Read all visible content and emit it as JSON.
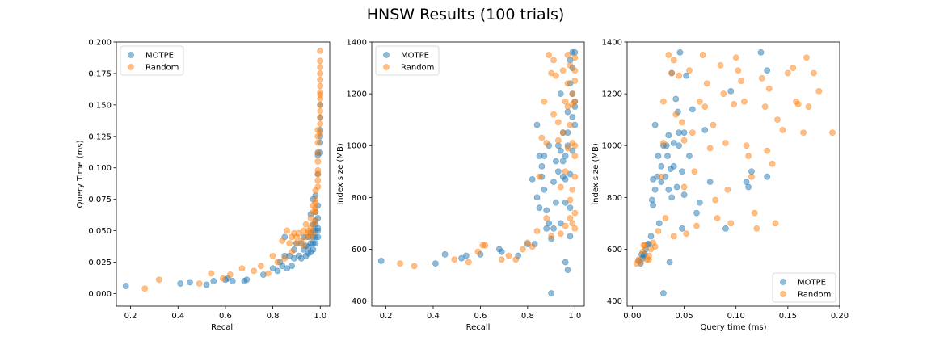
{
  "figure": {
    "title": "HNSW Results (100 trials)"
  },
  "colors": {
    "motpe": "#1f77b4",
    "random": "#ff7f0e"
  },
  "chart_data": [
    {
      "type": "scatter",
      "xlabel": "Recall",
      "ylabel": "Query Time (ms)",
      "xlim": [
        0.14,
        1.04
      ],
      "ylim": [
        -0.01,
        0.2
      ],
      "xticks": [
        0.2,
        0.4,
        0.6,
        0.8,
        1.0
      ],
      "yticks": [
        0.0,
        0.025,
        0.05,
        0.075,
        0.1,
        0.125,
        0.15,
        0.175,
        0.2
      ],
      "x_format": "1",
      "y_format": "3",
      "legend": "top-left",
      "series": [
        {
          "name": "MOTPE",
          "x": [
            0.18,
            0.41,
            0.45,
            0.52,
            0.55,
            0.6,
            0.61,
            0.63,
            0.68,
            0.69,
            0.76,
            0.8,
            0.82,
            0.83,
            0.84,
            0.85,
            0.85,
            0.86,
            0.87,
            0.88,
            0.89,
            0.89,
            0.9,
            0.91,
            0.92,
            0.92,
            0.93,
            0.93,
            0.94,
            0.94,
            0.95,
            0.95,
            0.95,
            0.96,
            0.96,
            0.96,
            0.96,
            0.97,
            0.97,
            0.97,
            0.97,
            0.97,
            0.97,
            0.98,
            0.98,
            0.98,
            0.98,
            0.98,
            0.98,
            0.98,
            0.99,
            0.99,
            0.99,
            0.99,
            0.99,
            0.99,
            0.99,
            0.99,
            1.0,
            1.0,
            1.0,
            1.0,
            1.0,
            1.0
          ],
          "y": [
            0.006,
            0.008,
            0.009,
            0.007,
            0.01,
            0.011,
            0.012,
            0.01,
            0.01,
            0.011,
            0.015,
            0.02,
            0.018,
            0.025,
            0.022,
            0.03,
            0.045,
            0.02,
            0.03,
            0.022,
            0.028,
            0.035,
            0.04,
            0.03,
            0.028,
            0.04,
            0.035,
            0.045,
            0.03,
            0.038,
            0.032,
            0.037,
            0.045,
            0.033,
            0.04,
            0.048,
            0.063,
            0.035,
            0.04,
            0.045,
            0.05,
            0.055,
            0.075,
            0.04,
            0.045,
            0.05,
            0.055,
            0.058,
            0.065,
            0.078,
            0.045,
            0.05,
            0.052,
            0.06,
            0.07,
            0.095,
            0.11,
            0.112,
            0.12,
            0.125,
            0.13,
            0.14,
            0.15,
            0.112
          ]
        },
        {
          "name": "Random",
          "x": [
            0.26,
            0.32,
            0.49,
            0.54,
            0.59,
            0.62,
            0.67,
            0.72,
            0.75,
            0.78,
            0.8,
            0.82,
            0.84,
            0.85,
            0.86,
            0.87,
            0.88,
            0.88,
            0.89,
            0.9,
            0.9,
            0.91,
            0.92,
            0.93,
            0.93,
            0.94,
            0.94,
            0.95,
            0.95,
            0.96,
            0.96,
            0.96,
            0.97,
            0.97,
            0.97,
            0.97,
            0.98,
            0.98,
            0.98,
            0.98,
            0.98,
            0.98,
            0.99,
            0.99,
            0.99,
            0.99,
            0.99,
            0.99,
            0.99,
            0.99,
            0.99,
            1.0,
            1.0,
            1.0,
            1.0,
            1.0,
            1.0,
            1.0,
            1.0,
            1.0,
            1.0,
            1.0,
            1.0,
            1.0,
            1.0
          ],
          "y": [
            0.004,
            0.011,
            0.008,
            0.016,
            0.012,
            0.015,
            0.02,
            0.018,
            0.022,
            0.016,
            0.03,
            0.025,
            0.042,
            0.028,
            0.05,
            0.04,
            0.045,
            0.033,
            0.048,
            0.045,
            0.04,
            0.048,
            0.042,
            0.05,
            0.038,
            0.045,
            0.055,
            0.05,
            0.048,
            0.06,
            0.052,
            0.045,
            0.065,
            0.055,
            0.07,
            0.048,
            0.058,
            0.065,
            0.075,
            0.082,
            0.068,
            0.072,
            0.085,
            0.09,
            0.095,
            0.098,
            0.105,
            0.112,
            0.125,
            0.13,
            0.12,
            0.135,
            0.14,
            0.145,
            0.15,
            0.155,
            0.158,
            0.16,
            0.165,
            0.17,
            0.175,
            0.18,
            0.185,
            0.193,
            0.128
          ]
        }
      ]
    },
    {
      "type": "scatter",
      "xlabel": "Recall",
      "ylabel": "Index size (MB)",
      "xlim": [
        0.14,
        1.04
      ],
      "ylim": [
        380,
        1400
      ],
      "xticks": [
        0.2,
        0.4,
        0.6,
        0.8,
        1.0
      ],
      "yticks": [
        400,
        600,
        800,
        1000,
        1200,
        1400
      ],
      "x_format": "1",
      "y_format": "0",
      "legend": "top-left",
      "series": [
        {
          "name": "MOTPE",
          "x": [
            0.18,
            0.41,
            0.45,
            0.52,
            0.54,
            0.6,
            0.68,
            0.69,
            0.76,
            0.8,
            0.82,
            0.83,
            0.84,
            0.84,
            0.85,
            0.85,
            0.86,
            0.86,
            0.87,
            0.87,
            0.88,
            0.88,
            0.89,
            0.89,
            0.9,
            0.9,
            0.91,
            0.91,
            0.92,
            0.92,
            0.93,
            0.93,
            0.94,
            0.94,
            0.94,
            0.95,
            0.95,
            0.95,
            0.96,
            0.96,
            0.96,
            0.96,
            0.97,
            0.97,
            0.97,
            0.97,
            0.98,
            0.98,
            0.98,
            0.98,
            0.98,
            0.99,
            0.99,
            0.99,
            0.99,
            0.99,
            1.0,
            1.0,
            1.0,
            1.0
          ],
          "y": [
            555,
            545,
            580,
            565,
            575,
            580,
            600,
            590,
            575,
            620,
            870,
            620,
            1080,
            800,
            960,
            760,
            880,
            920,
            960,
            830,
            750,
            680,
            1000,
            700,
            430,
            640,
            860,
            680,
            940,
            780,
            900,
            1000,
            980,
            700,
            1200,
            1050,
            940,
            880,
            550,
            960,
            870,
            780,
            520,
            1130,
            1050,
            1000,
            1330,
            1240,
            890,
            760,
            650,
            1200,
            1360,
            1300,
            1110,
            980,
            1150,
            1360,
            1170,
            1080
          ]
        },
        {
          "name": "Random",
          "x": [
            0.26,
            0.32,
            0.49,
            0.55,
            0.59,
            0.61,
            0.62,
            0.69,
            0.72,
            0.75,
            0.78,
            0.8,
            0.82,
            0.84,
            0.85,
            0.86,
            0.87,
            0.88,
            0.88,
            0.89,
            0.9,
            0.9,
            0.91,
            0.91,
            0.92,
            0.93,
            0.93,
            0.94,
            0.94,
            0.95,
            0.95,
            0.96,
            0.96,
            0.96,
            0.97,
            0.97,
            0.97,
            0.97,
            0.98,
            0.98,
            0.98,
            0.98,
            0.99,
            0.99,
            0.99,
            0.99,
            0.99,
            1.0,
            1.0,
            1.0,
            1.0,
            1.0,
            1.0,
            1.0,
            1.0,
            1.0
          ],
          "y": [
            545,
            535,
            560,
            550,
            590,
            615,
            615,
            560,
            575,
            560,
            600,
            625,
            610,
            670,
            880,
            1030,
            1170,
            1010,
            720,
            1350,
            1280,
            650,
            1330,
            1120,
            1270,
            1090,
            1020,
            840,
            660,
            1290,
            1050,
            900,
            690,
            1170,
            1350,
            1150,
            1240,
            990,
            1080,
            790,
            720,
            1310,
            1200,
            1010,
            830,
            700,
            1160,
            1340,
            1290,
            1250,
            1170,
            1000,
            960,
            880,
            740,
            680
          ]
        }
      ]
    },
    {
      "type": "scatter",
      "xlabel": "Query time (ms)",
      "ylabel": "Index size (MB)",
      "xlim": [
        -0.005,
        0.2
      ],
      "ylim": [
        380,
        1400
      ],
      "xticks": [
        0.0,
        0.05,
        0.1,
        0.15,
        0.2
      ],
      "yticks": [
        400,
        600,
        800,
        1000,
        1200,
        1400
      ],
      "x_format": "2",
      "y_format": "0",
      "legend": "bottom-right",
      "series": [
        {
          "name": "MOTPE",
          "x": [
            0.006,
            0.008,
            0.009,
            0.01,
            0.011,
            0.012,
            0.013,
            0.015,
            0.016,
            0.018,
            0.019,
            0.02,
            0.02,
            0.022,
            0.022,
            0.024,
            0.025,
            0.026,
            0.028,
            0.028,
            0.03,
            0.03,
            0.032,
            0.033,
            0.034,
            0.035,
            0.035,
            0.036,
            0.037,
            0.038,
            0.038,
            0.04,
            0.04,
            0.042,
            0.043,
            0.044,
            0.045,
            0.045,
            0.046,
            0.048,
            0.048,
            0.05,
            0.05,
            0.052,
            0.055,
            0.058,
            0.062,
            0.065,
            0.07,
            0.075,
            0.09,
            0.095,
            0.11,
            0.112,
            0.115,
            0.124,
            0.13,
            0.13
          ],
          "y": [
            555,
            545,
            580,
            565,
            575,
            580,
            600,
            620,
            620,
            650,
            790,
            770,
            870,
            830,
            1080,
            880,
            960,
            700,
            920,
            860,
            1000,
            430,
            880,
            1000,
            960,
            830,
            1040,
            550,
            910,
            1280,
            800,
            920,
            1010,
            1180,
            840,
            1130,
            1000,
            1050,
            1360,
            900,
            680,
            810,
            1050,
            1270,
            960,
            1140,
            740,
            780,
            1060,
            860,
            680,
            1210,
            860,
            840,
            900,
            1360,
            880,
            1290
          ]
        },
        {
          "name": "Random",
          "x": [
            0.004,
            0.006,
            0.008,
            0.01,
            0.011,
            0.012,
            0.014,
            0.016,
            0.016,
            0.018,
            0.02,
            0.022,
            0.025,
            0.028,
            0.03,
            0.03,
            0.032,
            0.035,
            0.038,
            0.04,
            0.04,
            0.042,
            0.045,
            0.048,
            0.05,
            0.05,
            0.052,
            0.055,
            0.058,
            0.06,
            0.062,
            0.065,
            0.068,
            0.07,
            0.072,
            0.075,
            0.078,
            0.08,
            0.082,
            0.085,
            0.088,
            0.09,
            0.092,
            0.095,
            0.098,
            0.1,
            0.102,
            0.105,
            0.108,
            0.11,
            0.112,
            0.115,
            0.118,
            0.12,
            0.125,
            0.128,
            0.13,
            0.132,
            0.135,
            0.138,
            0.14,
            0.145,
            0.15,
            0.155,
            0.158,
            0.16,
            0.165,
            0.168,
            0.17,
            0.175,
            0.18,
            0.193
          ],
          "y": [
            545,
            560,
            550,
            590,
            615,
            615,
            560,
            575,
            560,
            600,
            625,
            610,
            670,
            880,
            1170,
            1010,
            720,
            1350,
            1280,
            650,
            1330,
            1120,
            1270,
            1090,
            1020,
            840,
            660,
            1290,
            1050,
            900,
            690,
            1170,
            1350,
            1150,
            1240,
            990,
            1080,
            790,
            720,
            1310,
            1200,
            1010,
            830,
            700,
            1160,
            1340,
            1290,
            1250,
            1170,
            1000,
            960,
            880,
            740,
            680,
            1260,
            1150,
            980,
            1220,
            930,
            700,
            1100,
            1060,
            1280,
            1300,
            1170,
            1160,
            1050,
            1340,
            1150,
            1280,
            1210,
            1050
          ]
        }
      ]
    }
  ]
}
